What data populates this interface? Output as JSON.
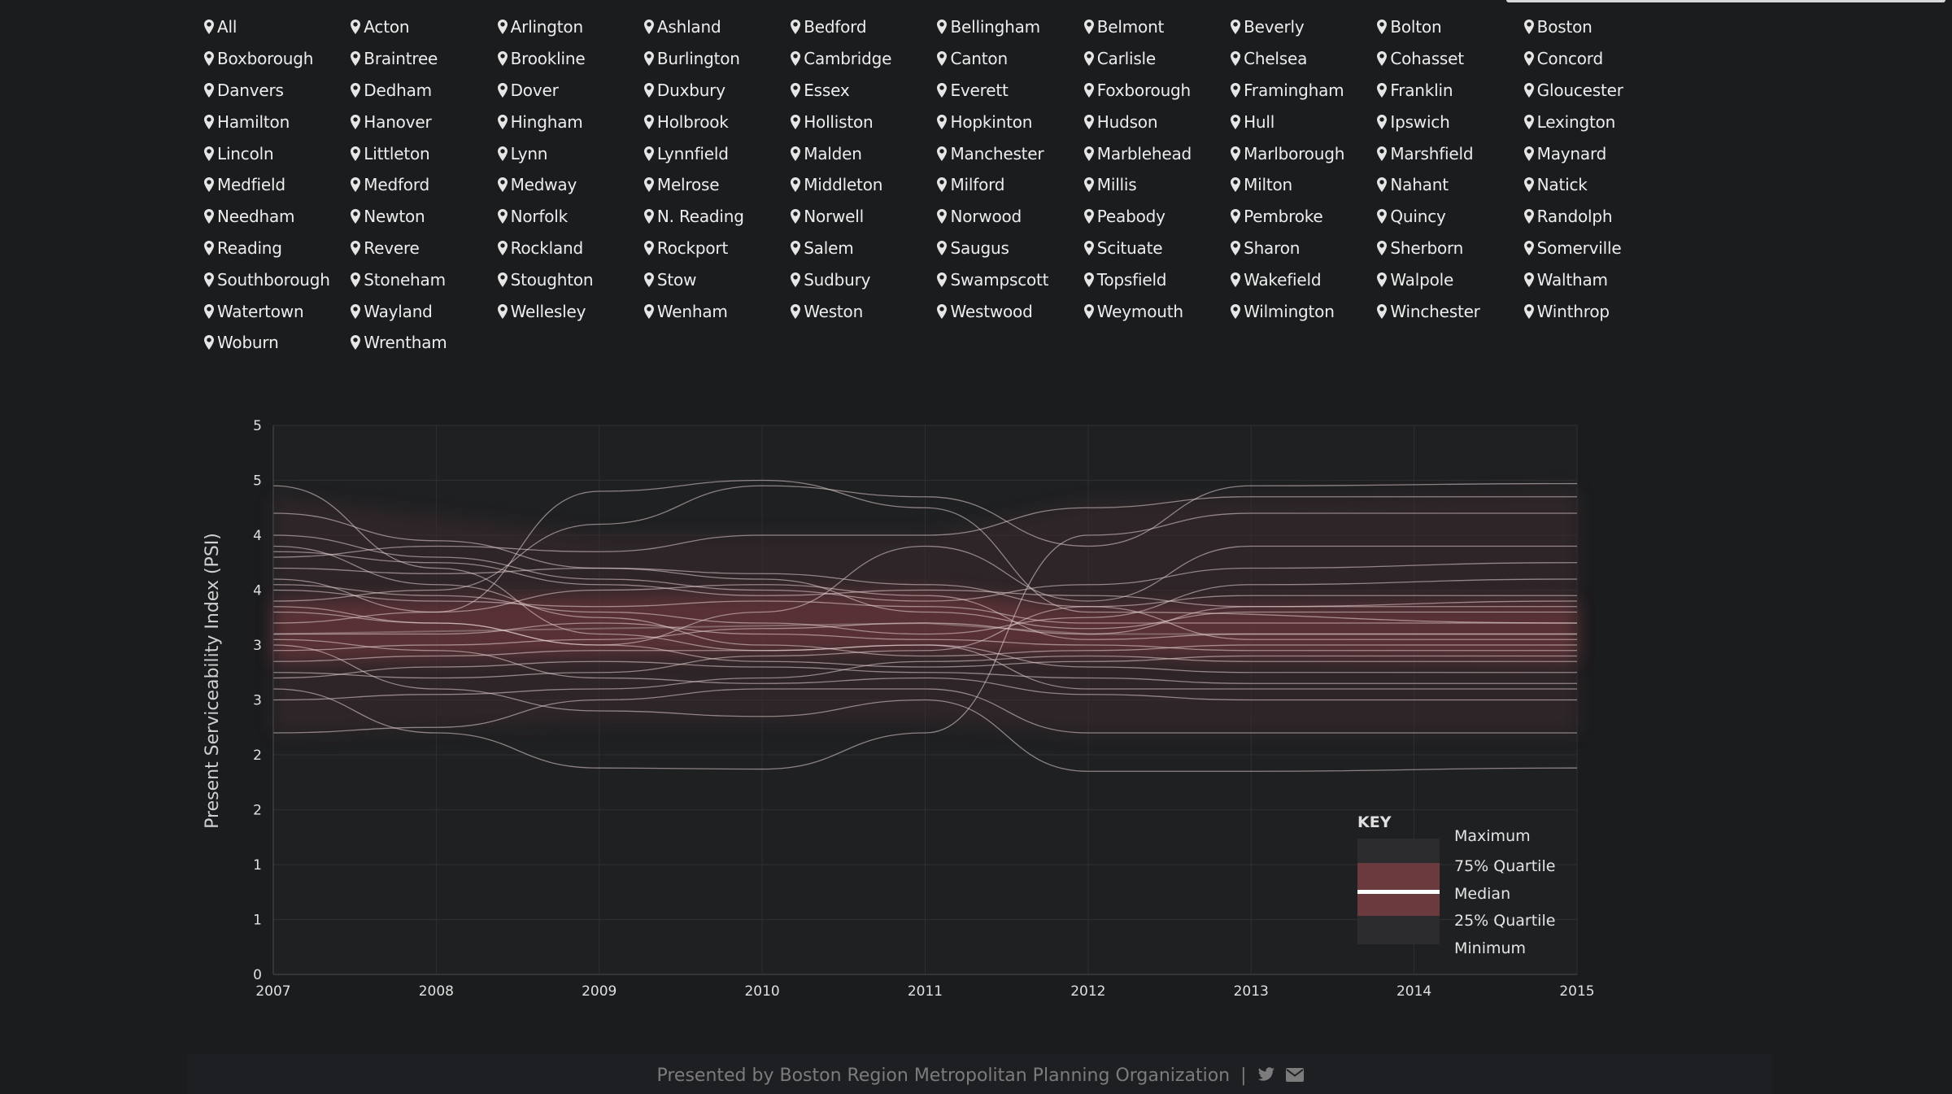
{
  "towns": [
    "All",
    "Acton",
    "Arlington",
    "Ashland",
    "Bedford",
    "Bellingham",
    "Belmont",
    "Beverly",
    "Bolton",
    "Boston",
    "Boxborough",
    "Braintree",
    "Brookline",
    "Burlington",
    "Cambridge",
    "Canton",
    "Carlisle",
    "Chelsea",
    "Cohasset",
    "Concord",
    "Danvers",
    "Dedham",
    "Dover",
    "Duxbury",
    "Essex",
    "Everett",
    "Foxborough",
    "Framingham",
    "Franklin",
    "Gloucester",
    "Hamilton",
    "Hanover",
    "Hingham",
    "Holbrook",
    "Holliston",
    "Hopkinton",
    "Hudson",
    "Hull",
    "Ipswich",
    "Lexington",
    "Lincoln",
    "Littleton",
    "Lynn",
    "Lynnfield",
    "Malden",
    "Manchester",
    "Marblehead",
    "Marlborough",
    "Marshfield",
    "Maynard",
    "Medfield",
    "Medford",
    "Medway",
    "Melrose",
    "Middleton",
    "Milford",
    "Millis",
    "Milton",
    "Nahant",
    "Natick",
    "Needham",
    "Newton",
    "Norfolk",
    "N. Reading",
    "Norwell",
    "Norwood",
    "Peabody",
    "Pembroke",
    "Quincy",
    "Randolph",
    "Reading",
    "Revere",
    "Rockland",
    "Rockport",
    "Salem",
    "Saugus",
    "Scituate",
    "Sharon",
    "Sherborn",
    "Somerville",
    "Southborough",
    "Stoneham",
    "Stoughton",
    "Stow",
    "Sudbury",
    "Swampscott",
    "Topsfield",
    "Wakefield",
    "Walpole",
    "Waltham",
    "Watertown",
    "Wayland",
    "Wellesley",
    "Wenham",
    "Weston",
    "Westwood",
    "Weymouth",
    "Wilmington",
    "Winchester",
    "Winthrop",
    "Woburn",
    "Wrentham"
  ],
  "chart_data": {
    "type": "line",
    "ylabel": "Present Serviceability Index (PSI)",
    "x_ticks": [
      "2007",
      "2008",
      "2009",
      "2010",
      "2011",
      "2012",
      "2013",
      "2014",
      "2015"
    ],
    "y_tick_labels": [
      "0",
      "1",
      "1",
      "2",
      "2",
      "3",
      "3",
      "4",
      "4",
      "5",
      "5"
    ],
    "y_tick_values": [
      0,
      0.5,
      1,
      1.5,
      2,
      2.5,
      3,
      3.5,
      4,
      4.5,
      5
    ],
    "xlim": [
      2007,
      2015
    ],
    "ylim": [
      0,
      5
    ],
    "grid": true,
    "line_color": "#e8d4d4",
    "quartile_color": "#7a3b40",
    "range_color": "#3a2a2d",
    "median_color": "#ffffff",
    "bands": [
      {
        "x": 2007,
        "min": 2.2,
        "q1": 2.85,
        "median": 3.1,
        "q3": 3.4,
        "max": 4.35
      },
      {
        "x": 2009,
        "min": 2.3,
        "q1": 2.9,
        "median": 3.15,
        "q3": 3.45,
        "max": 4.0
      },
      {
        "x": 2011,
        "min": 2.3,
        "q1": 2.95,
        "median": 3.2,
        "q3": 3.5,
        "max": 4.0
      },
      {
        "x": 2012,
        "min": 2.2,
        "q1": 2.9,
        "median": 3.1,
        "q3": 3.35,
        "max": 4.3
      },
      {
        "x": 2015,
        "min": 2.2,
        "q1": 2.85,
        "median": 3.1,
        "q3": 3.4,
        "max": 4.4
      }
    ],
    "series": [
      {
        "values": [
          {
            "x": 2007,
            "y": 4.45
          },
          {
            "x": 2008,
            "y": 3.7
          },
          {
            "x": 2009,
            "y": 3.1
          },
          {
            "x": 2010,
            "y": 2.95
          },
          {
            "x": 2011,
            "y": 3.0
          },
          {
            "x": 2012,
            "y": 2.6
          },
          {
            "x": 2015,
            "y": 2.6
          }
        ]
      },
      {
        "values": [
          {
            "x": 2007,
            "y": 3.6
          },
          {
            "x": 2008,
            "y": 3.3
          },
          {
            "x": 2009,
            "y": 4.4
          },
          {
            "x": 2010,
            "y": 4.5
          },
          {
            "x": 2011,
            "y": 4.25
          },
          {
            "x": 2012,
            "y": 3.3
          },
          {
            "x": 2015,
            "y": 3.2
          }
        ]
      },
      {
        "values": [
          {
            "x": 2007,
            "y": 3.4
          },
          {
            "x": 2008,
            "y": 3.5
          },
          {
            "x": 2009,
            "y": 4.1
          },
          {
            "x": 2010,
            "y": 4.45
          },
          {
            "x": 2011,
            "y": 4.35
          },
          {
            "x": 2012,
            "y": 3.9
          },
          {
            "x": 2013,
            "y": 4.45
          },
          {
            "x": 2015,
            "y": 4.47
          }
        ]
      },
      {
        "values": [
          {
            "x": 2007,
            "y": 3.8
          },
          {
            "x": 2008,
            "y": 3.9
          },
          {
            "x": 2009,
            "y": 3.85
          },
          {
            "x": 2010,
            "y": 4.0
          },
          {
            "x": 2011,
            "y": 4.0
          },
          {
            "x": 2012,
            "y": 4.25
          },
          {
            "x": 2013,
            "y": 4.35
          },
          {
            "x": 2015,
            "y": 4.35
          }
        ]
      },
      {
        "values": [
          {
            "x": 2007,
            "y": 2.6
          },
          {
            "x": 2008,
            "y": 2.2
          },
          {
            "x": 2009,
            "y": 1.88
          },
          {
            "x": 2010,
            "y": 1.87
          },
          {
            "x": 2011,
            "y": 2.2
          },
          {
            "x": 2012,
            "y": 4.0
          },
          {
            "x": 2013,
            "y": 4.2
          },
          {
            "x": 2015,
            "y": 4.2
          }
        ]
      },
      {
        "values": [
          {
            "x": 2007,
            "y": 3.3
          },
          {
            "x": 2008,
            "y": 3.2
          },
          {
            "x": 2009,
            "y": 3.0
          },
          {
            "x": 2010,
            "y": 3.3
          },
          {
            "x": 2011,
            "y": 3.9
          },
          {
            "x": 2012,
            "y": 3.4
          },
          {
            "x": 2013,
            "y": 3.9
          },
          {
            "x": 2015,
            "y": 3.9
          }
        ]
      },
      {
        "values": [
          {
            "x": 2007,
            "y": 2.2
          },
          {
            "x": 2008,
            "y": 2.25
          },
          {
            "x": 2009,
            "y": 2.5
          },
          {
            "x": 2010,
            "y": 2.6
          },
          {
            "x": 2011,
            "y": 2.6
          },
          {
            "x": 2012,
            "y": 2.2
          },
          {
            "x": 2013,
            "y": 2.2
          },
          {
            "x": 2015,
            "y": 2.2
          }
        ]
      },
      {
        "values": [
          {
            "x": 2007,
            "y": 3.0
          },
          {
            "x": 2008,
            "y": 2.6
          },
          {
            "x": 2009,
            "y": 2.4
          },
          {
            "x": 2010,
            "y": 2.35
          },
          {
            "x": 2011,
            "y": 2.5
          },
          {
            "x": 2012,
            "y": 1.85
          },
          {
            "x": 2013,
            "y": 1.85
          },
          {
            "x": 2015,
            "y": 1.88
          }
        ]
      },
      {
        "values": [
          {
            "x": 2007,
            "y": 4.0
          },
          {
            "x": 2008,
            "y": 3.8
          },
          {
            "x": 2009,
            "y": 3.6
          },
          {
            "x": 2010,
            "y": 3.5
          },
          {
            "x": 2011,
            "y": 3.4
          },
          {
            "x": 2012,
            "y": 3.55
          },
          {
            "x": 2013,
            "y": 3.7
          },
          {
            "x": 2015,
            "y": 3.75
          }
        ]
      },
      {
        "values": [
          {
            "x": 2007,
            "y": 3.1
          },
          {
            "x": 2008,
            "y": 3.1
          },
          {
            "x": 2009,
            "y": 3.2
          },
          {
            "x": 2010,
            "y": 3.1
          },
          {
            "x": 2011,
            "y": 3.05
          },
          {
            "x": 2012,
            "y": 3.0
          },
          {
            "x": 2013,
            "y": 2.95
          },
          {
            "x": 2015,
            "y": 2.95
          }
        ]
      },
      {
        "values": [
          {
            "x": 2007,
            "y": 2.7
          },
          {
            "x": 2008,
            "y": 2.8
          },
          {
            "x": 2009,
            "y": 2.85
          },
          {
            "x": 2010,
            "y": 2.8
          },
          {
            "x": 2011,
            "y": 2.75
          },
          {
            "x": 2012,
            "y": 2.7
          },
          {
            "x": 2013,
            "y": 2.65
          },
          {
            "x": 2015,
            "y": 2.65
          }
        ]
      },
      {
        "values": [
          {
            "x": 2007,
            "y": 3.5
          },
          {
            "x": 2008,
            "y": 3.4
          },
          {
            "x": 2009,
            "y": 3.35
          },
          {
            "x": 2010,
            "y": 3.4
          },
          {
            "x": 2011,
            "y": 3.35
          },
          {
            "x": 2012,
            "y": 3.2
          },
          {
            "x": 2013,
            "y": 3.2
          },
          {
            "x": 2015,
            "y": 3.2
          }
        ]
      },
      {
        "values": [
          {
            "x": 2007,
            "y": 3.9
          },
          {
            "x": 2008,
            "y": 3.55
          },
          {
            "x": 2009,
            "y": 3.25
          },
          {
            "x": 2010,
            "y": 3.0
          },
          {
            "x": 2011,
            "y": 2.9
          },
          {
            "x": 2012,
            "y": 2.95
          },
          {
            "x": 2013,
            "y": 3.0
          },
          {
            "x": 2015,
            "y": 3.0
          }
        ]
      },
      {
        "values": [
          {
            "x": 2007,
            "y": 2.95
          },
          {
            "x": 2008,
            "y": 3.0
          },
          {
            "x": 2009,
            "y": 3.05
          },
          {
            "x": 2010,
            "y": 3.15
          },
          {
            "x": 2011,
            "y": 3.2
          },
          {
            "x": 2012,
            "y": 3.1
          },
          {
            "x": 2013,
            "y": 3.35
          },
          {
            "x": 2015,
            "y": 3.4
          }
        ]
      },
      {
        "values": [
          {
            "x": 2007,
            "y": 3.7
          },
          {
            "x": 2008,
            "y": 3.65
          },
          {
            "x": 2009,
            "y": 3.7
          },
          {
            "x": 2010,
            "y": 3.65
          },
          {
            "x": 2011,
            "y": 3.55
          },
          {
            "x": 2012,
            "y": 3.35
          },
          {
            "x": 2013,
            "y": 3.45
          },
          {
            "x": 2015,
            "y": 3.45
          }
        ]
      },
      {
        "values": [
          {
            "x": 2007,
            "y": 2.5
          },
          {
            "x": 2008,
            "y": 2.55
          },
          {
            "x": 2009,
            "y": 2.6
          },
          {
            "x": 2010,
            "y": 2.7
          },
          {
            "x": 2011,
            "y": 2.85
          },
          {
            "x": 2012,
            "y": 2.9
          },
          {
            "x": 2013,
            "y": 2.85
          },
          {
            "x": 2015,
            "y": 2.85
          }
        ]
      },
      {
        "values": [
          {
            "x": 2007,
            "y": 3.2
          },
          {
            "x": 2008,
            "y": 3.3
          },
          {
            "x": 2009,
            "y": 3.5
          },
          {
            "x": 2010,
            "y": 3.55
          },
          {
            "x": 2011,
            "y": 3.45
          },
          {
            "x": 2012,
            "y": 3.05
          },
          {
            "x": 2013,
            "y": 3.1
          },
          {
            "x": 2015,
            "y": 3.1
          }
        ]
      },
      {
        "values": [
          {
            "x": 2007,
            "y": 4.2
          },
          {
            "x": 2008,
            "y": 3.95
          },
          {
            "x": 2009,
            "y": 3.7
          },
          {
            "x": 2010,
            "y": 3.6
          },
          {
            "x": 2011,
            "y": 3.3
          },
          {
            "x": 2012,
            "y": 3.15
          },
          {
            "x": 2013,
            "y": 3.3
          },
          {
            "x": 2015,
            "y": 3.3
          }
        ]
      },
      {
        "values": [
          {
            "x": 2007,
            "y": 2.85
          },
          {
            "x": 2008,
            "y": 2.9
          },
          {
            "x": 2009,
            "y": 2.95
          },
          {
            "x": 2010,
            "y": 2.95
          },
          {
            "x": 2011,
            "y": 3.0
          },
          {
            "x": 2012,
            "y": 2.8
          },
          {
            "x": 2013,
            "y": 2.75
          },
          {
            "x": 2015,
            "y": 2.75
          }
        ]
      },
      {
        "values": [
          {
            "x": 2007,
            "y": 3.55
          },
          {
            "x": 2008,
            "y": 3.45
          },
          {
            "x": 2009,
            "y": 3.3
          },
          {
            "x": 2010,
            "y": 3.2
          },
          {
            "x": 2011,
            "y": 3.1
          },
          {
            "x": 2012,
            "y": 3.25
          },
          {
            "x": 2013,
            "y": 3.55
          },
          {
            "x": 2015,
            "y": 3.6
          }
        ]
      },
      {
        "values": [
          {
            "x": 2007,
            "y": 3.05
          },
          {
            "x": 2008,
            "y": 2.95
          },
          {
            "x": 2009,
            "y": 2.7
          },
          {
            "x": 2010,
            "y": 2.65
          },
          {
            "x": 2011,
            "y": 2.7
          },
          {
            "x": 2012,
            "y": 2.55
          },
          {
            "x": 2013,
            "y": 2.5
          },
          {
            "x": 2015,
            "y": 2.5
          }
        ]
      },
      {
        "values": [
          {
            "x": 2007,
            "y": 3.85
          },
          {
            "x": 2008,
            "y": 3.75
          },
          {
            "x": 2009,
            "y": 3.55
          },
          {
            "x": 2010,
            "y": 3.45
          },
          {
            "x": 2011,
            "y": 3.5
          },
          {
            "x": 2012,
            "y": 3.45
          },
          {
            "x": 2013,
            "y": 3.35
          },
          {
            "x": 2015,
            "y": 3.35
          }
        ]
      },
      {
        "values": [
          {
            "x": 2007,
            "y": 2.75
          },
          {
            "x": 2008,
            "y": 2.7
          },
          {
            "x": 2009,
            "y": 2.75
          },
          {
            "x": 2010,
            "y": 2.9
          },
          {
            "x": 2011,
            "y": 2.95
          },
          {
            "x": 2012,
            "y": 3.35
          },
          {
            "x": 2013,
            "y": 3.05
          },
          {
            "x": 2015,
            "y": 3.05
          }
        ]
      },
      {
        "values": [
          {
            "x": 2007,
            "y": 3.35
          },
          {
            "x": 2008,
            "y": 3.2
          },
          {
            "x": 2009,
            "y": 3.0
          },
          {
            "x": 2010,
            "y": 2.85
          },
          {
            "x": 2011,
            "y": 2.8
          },
          {
            "x": 2012,
            "y": 2.85
          },
          {
            "x": 2013,
            "y": 2.9
          },
          {
            "x": 2015,
            "y": 2.9
          }
        ]
      }
    ],
    "legend": {
      "title": "KEY",
      "items": [
        "Maximum",
        "75% Quartile",
        "Median",
        "25% Quartile",
        "Minimum"
      ],
      "position": "bottom-right"
    }
  },
  "footer": {
    "text": "Presented by Boston Region Metropolitan Planning Organization",
    "separator": "|",
    "icons": [
      "twitter-icon",
      "envelope-icon"
    ]
  }
}
